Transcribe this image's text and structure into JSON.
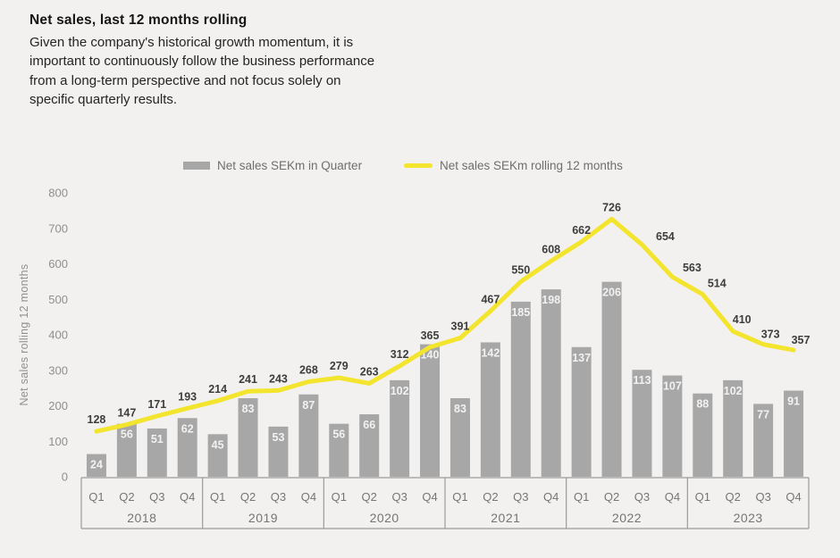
{
  "header": {
    "title": "Net sales, last 12 months rolling",
    "body": "Given the company's historical growth momentum, it is important to continuously follow the business performance from a long-term perspective and not focus solely on specific quarterly results."
  },
  "chart_data": {
    "type": "bar",
    "subtype": "bar and line combo",
    "title": "Net sales, last 12 months rolling",
    "quarter_labels": [
      "Q1",
      "Q2",
      "Q3",
      "Q4"
    ],
    "years": [
      "2018",
      "2019",
      "2020",
      "2021",
      "2022",
      "2023"
    ],
    "series": [
      {
        "name": "Net sales SEKm in Quarter",
        "type": "bar",
        "values": [
          24,
          56,
          51,
          62,
          45,
          83,
          53,
          87,
          56,
          66,
          102,
          140,
          83,
          142,
          185,
          198,
          137,
          206,
          113,
          107,
          88,
          102,
          77,
          91
        ]
      },
      {
        "name": "Net sales SEKm rolling 12 months",
        "type": "line",
        "values": [
          128,
          147,
          171,
          193,
          214,
          241,
          243,
          268,
          279,
          263,
          312,
          365,
          391,
          467,
          550,
          608,
          662,
          726,
          654,
          563,
          514,
          410,
          373,
          357
        ]
      }
    ],
    "ylabel": "Net sales rolling 12 months",
    "ylim": [
      0,
      800
    ],
    "ytick_step": 100,
    "bar_axis_max": 300,
    "grid": false,
    "legend_position": "top",
    "colors": {
      "bar": "#a7a7a7",
      "line": "#f3e42d",
      "background": "#f2f1ef",
      "bar_value_label": "#f2f2f2",
      "line_value_label": "#3d3d3d",
      "axis_text": "#8f8f8f",
      "axis_line": "#9b9b9b"
    }
  }
}
